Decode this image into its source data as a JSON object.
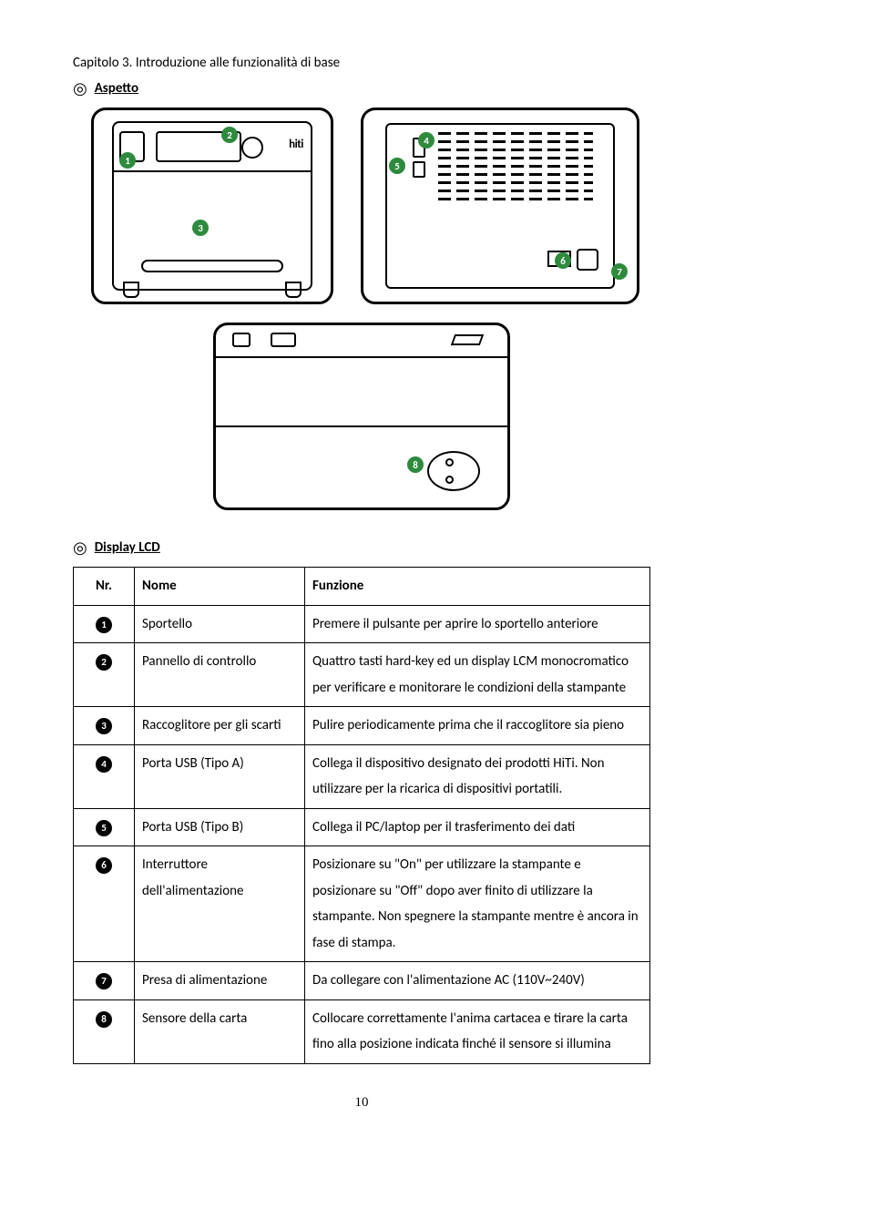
{
  "chapter_title": "Capitolo 3. Introduzione alle funzionalità di base",
  "section_aspetto": "Aspetto",
  "section_display": "Display LCD",
  "brand": "hiti",
  "diagram1_badges": {
    "b1": "1",
    "b2": "2",
    "b3": "3"
  },
  "diagram2_badges": {
    "b4": "4",
    "b5": "5",
    "b6": "6",
    "b7": "7"
  },
  "diagram3_badges": {
    "b8": "8"
  },
  "table": {
    "header": {
      "nr": "Nr.",
      "nome": "Nome",
      "funzione": "Funzione"
    },
    "rows": [
      {
        "n": "1",
        "nome": "Sportello",
        "funzione": "Premere il pulsante per aprire lo sportello anteriore"
      },
      {
        "n": "2",
        "nome": "Pannello di controllo",
        "funzione": "Quattro tasti hard-key ed un display LCM monocromatico per verificare e monitorare le condizioni della stampante"
      },
      {
        "n": "3",
        "nome": "Raccoglitore per gli scarti",
        "funzione": "Pulire periodicamente prima che il raccoglitore sia pieno"
      },
      {
        "n": "4",
        "nome": "Porta USB (Tipo A)",
        "funzione": "Collega il dispositivo designato dei prodotti HiTi. Non utilizzare per la ricarica di dispositivi portatili."
      },
      {
        "n": "5",
        "nome": "Porta USB (Tipo B)",
        "funzione": "Collega il PC/laptop per il trasferimento dei dati"
      },
      {
        "n": "6",
        "nome": "Interruttore dell'alimentazione",
        "funzione": "Posizionare su \"On\" per utilizzare la stampante e posizionare su \"Off\" dopo aver finito di utilizzare la stampante. Non spegnere la stampante mentre è ancora in fase di stampa."
      },
      {
        "n": "7",
        "nome": "Presa di alimentazione",
        "funzione": "Da collegare con l'alimentazione AC (110V~240V)"
      },
      {
        "n": "8",
        "nome": "Sensore della carta",
        "funzione": "Collocare correttamente l'anima cartacea e tirare la carta fino alla posizione indicata finché il sensore si illumina"
      }
    ]
  },
  "page_number": "10"
}
